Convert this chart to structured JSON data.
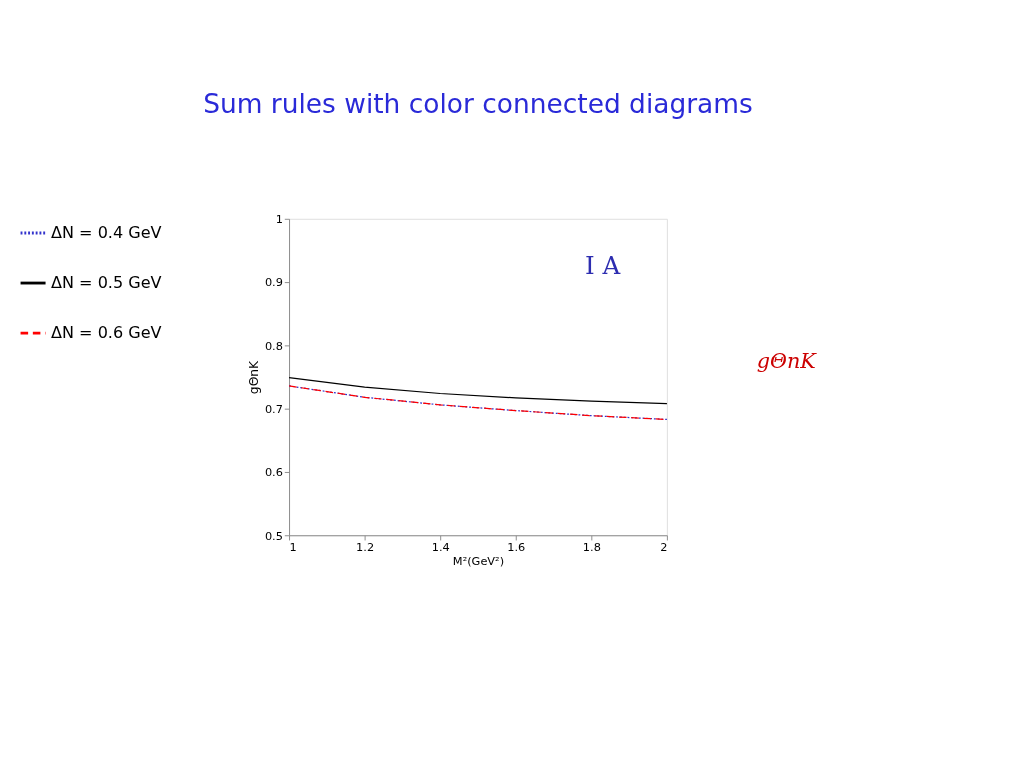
{
  "chart_data": {
    "type": "line",
    "title": "Sum rules with color connected diagrams",
    "xlabel": "M²(GeV²)",
    "ylabel": "gΘnK",
    "x": [
      1,
      1.2,
      1.4,
      1.6,
      1.8,
      2
    ],
    "series": [
      {
        "name": "ΔN = 0.4 GeV",
        "color": "#3333cc",
        "line_style": "dotted",
        "values": [
          0.736,
          0.718,
          0.706,
          0.697,
          0.689,
          0.683
        ]
      },
      {
        "name": "ΔN = 0.5 GeV",
        "color": "#000000",
        "line_style": "solid",
        "values": [
          0.749,
          0.734,
          0.724,
          0.717,
          0.712,
          0.708
        ]
      },
      {
        "name": "ΔN = 0.6 GeV",
        "color": "#ff0000",
        "line_style": "dashed",
        "values": [
          0.736,
          0.718,
          0.706,
          0.697,
          0.689,
          0.683
        ]
      }
    ],
    "xlim": [
      1,
      2
    ],
    "xticks": [
      1,
      1.2,
      1.4,
      1.6,
      1.8,
      2
    ],
    "ylim": [
      0.5,
      1
    ],
    "yticks": [
      0.5,
      0.6,
      0.7,
      0.8,
      0.9,
      1
    ],
    "grid": false,
    "legend": "left",
    "marker": "none",
    "annotations": [
      "I A",
      "gΘnK"
    ]
  }
}
